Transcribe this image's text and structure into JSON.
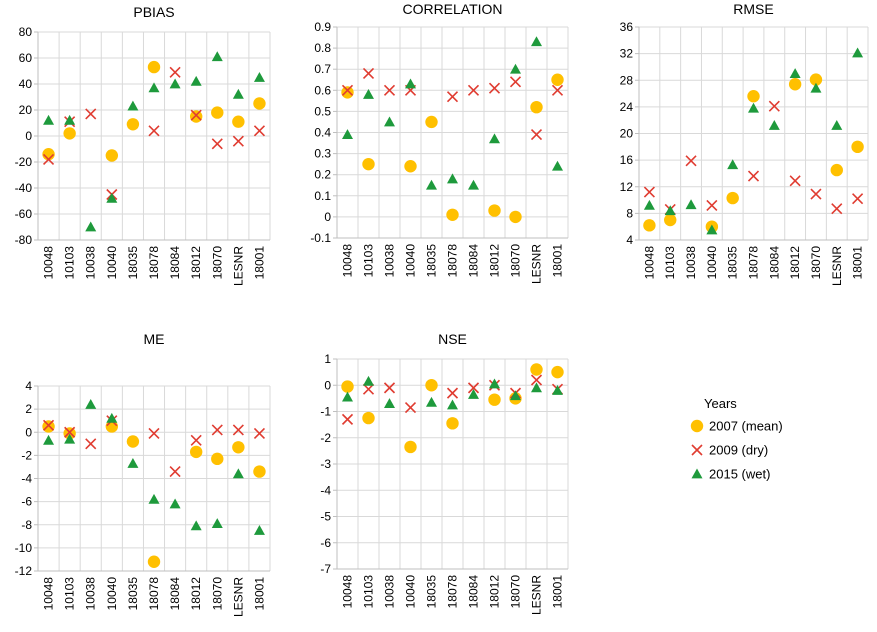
{
  "legend": {
    "title": "Years",
    "entries": [
      {
        "label": "2007 (mean)",
        "marker": "circle",
        "color": "#FFC000"
      },
      {
        "label": "2009 (dry)",
        "marker": "x",
        "color": "#E03C31"
      },
      {
        "label": "2015 (wet)",
        "marker": "triangle",
        "color": "#1E9A3C"
      }
    ]
  },
  "chart_data": [
    {
      "type": "scatter",
      "title": "PBIAS",
      "categories": [
        "10048",
        "10103",
        "10038",
        "10040",
        "18035",
        "18078",
        "18084",
        "18012",
        "18070",
        "LESNR",
        "18001"
      ],
      "ylim": [
        -80,
        80
      ],
      "yticks": [
        -80,
        -60,
        -40,
        -20,
        0,
        20,
        40,
        60,
        80
      ],
      "grid": true,
      "series": [
        {
          "name": "2007 (mean)",
          "values": [
            -14,
            2,
            null,
            -15,
            9,
            53,
            null,
            15,
            18,
            11,
            25
          ]
        },
        {
          "name": "2009 (dry)",
          "values": [
            -18,
            11,
            17,
            -45,
            null,
            4,
            49,
            16,
            -6,
            -4,
            4
          ]
        },
        {
          "name": "2015 (wet)",
          "values": [
            12,
            12,
            -70,
            -48,
            23,
            37,
            40,
            42,
            61,
            32,
            45
          ]
        }
      ]
    },
    {
      "type": "scatter",
      "title": "CORRELATION",
      "categories": [
        "10048",
        "10103",
        "10038",
        "10040",
        "18035",
        "18078",
        "18084",
        "18012",
        "18070",
        "LESNR",
        "18001"
      ],
      "ylim": [
        -0.1,
        0.9
      ],
      "yticks": [
        -0.1,
        0,
        0.1,
        0.2,
        0.3,
        0.4,
        0.5,
        0.6,
        0.7,
        0.8,
        0.9
      ],
      "grid": true,
      "series": [
        {
          "name": "2007 (mean)",
          "values": [
            0.59,
            0.25,
            null,
            0.24,
            0.45,
            0.01,
            null,
            0.03,
            0.0,
            0.52,
            0.65
          ]
        },
        {
          "name": "2009 (dry)",
          "values": [
            0.6,
            0.68,
            0.6,
            0.6,
            null,
            0.57,
            0.6,
            0.61,
            0.64,
            0.39,
            0.6
          ]
        },
        {
          "name": "2015 (wet)",
          "values": [
            0.39,
            0.58,
            0.45,
            0.63,
            0.15,
            0.18,
            0.15,
            0.37,
            0.7,
            0.83,
            0.24
          ]
        }
      ]
    },
    {
      "type": "scatter",
      "title": "RMSE",
      "categories": [
        "10048",
        "10103",
        "10038",
        "10040",
        "18035",
        "18078",
        "18084",
        "18012",
        "18070",
        "LESNR",
        "18001"
      ],
      "ylim": [
        4,
        36
      ],
      "yticks": [
        4,
        8,
        12,
        16,
        20,
        24,
        28,
        32,
        36
      ],
      "grid": true,
      "series": [
        {
          "name": "2007 (mean)",
          "values": [
            6.2,
            7.0,
            null,
            6.0,
            10.3,
            25.6,
            null,
            27.4,
            28.1,
            14.5,
            18.0
          ]
        },
        {
          "name": "2009 (dry)",
          "values": [
            11.2,
            8.6,
            15.9,
            9.2,
            null,
            13.6,
            24.1,
            12.9,
            10.9,
            8.7,
            10.2
          ]
        },
        {
          "name": "2015 (wet)",
          "values": [
            9.2,
            8.4,
            9.3,
            5.5,
            15.3,
            23.8,
            21.2,
            29.0,
            26.8,
            21.2,
            32.1
          ]
        }
      ]
    },
    {
      "type": "scatter",
      "title": "ME",
      "categories": [
        "10048",
        "10103",
        "10038",
        "10040",
        "18035",
        "18078",
        "18084",
        "18012",
        "18070",
        "LESNR",
        "18001"
      ],
      "ylim": [
        -12,
        4
      ],
      "yticks": [
        -12,
        -10,
        -8,
        -6,
        -4,
        -2,
        0,
        2,
        4
      ],
      "grid": true,
      "series": [
        {
          "name": "2007 (mean)",
          "values": [
            0.5,
            -0.1,
            null,
            0.5,
            -0.8,
            -11.2,
            null,
            -1.7,
            -2.3,
            -1.3,
            -3.4
          ]
        },
        {
          "name": "2009 (dry)",
          "values": [
            0.6,
            0.0,
            -1.0,
            1.0,
            null,
            -0.1,
            -3.4,
            -0.7,
            0.2,
            0.2,
            -0.1
          ]
        },
        {
          "name": "2015 (wet)",
          "values": [
            -0.7,
            -0.6,
            2.4,
            1.2,
            -2.7,
            -5.8,
            -6.2,
            -8.1,
            -7.9,
            -3.6,
            -8.5
          ]
        }
      ]
    },
    {
      "type": "scatter",
      "title": "NSE",
      "categories": [
        "10048",
        "10103",
        "10038",
        "10040",
        "18035",
        "18078",
        "18084",
        "18012",
        "18070",
        "LESNR",
        "18001"
      ],
      "ylim": [
        -7,
        1
      ],
      "yticks": [
        -7,
        -6,
        -5,
        -4,
        -3,
        -2,
        -1,
        0,
        1
      ],
      "grid": true,
      "series": [
        {
          "name": "2007 (mean)",
          "values": [
            -0.05,
            -1.25,
            null,
            -2.35,
            0.0,
            -1.45,
            null,
            -0.55,
            -0.5,
            0.6,
            0.5
          ]
        },
        {
          "name": "2009 (dry)",
          "values": [
            -1.3,
            -0.15,
            -0.1,
            -0.85,
            null,
            -0.3,
            -0.1,
            0.0,
            -0.3,
            0.2,
            -0.15
          ]
        },
        {
          "name": "2015 (wet)",
          "values": [
            -0.45,
            0.15,
            -0.7,
            null,
            -0.65,
            -0.75,
            -0.35,
            0.05,
            -0.4,
            -0.1,
            -0.2
          ]
        }
      ]
    }
  ]
}
